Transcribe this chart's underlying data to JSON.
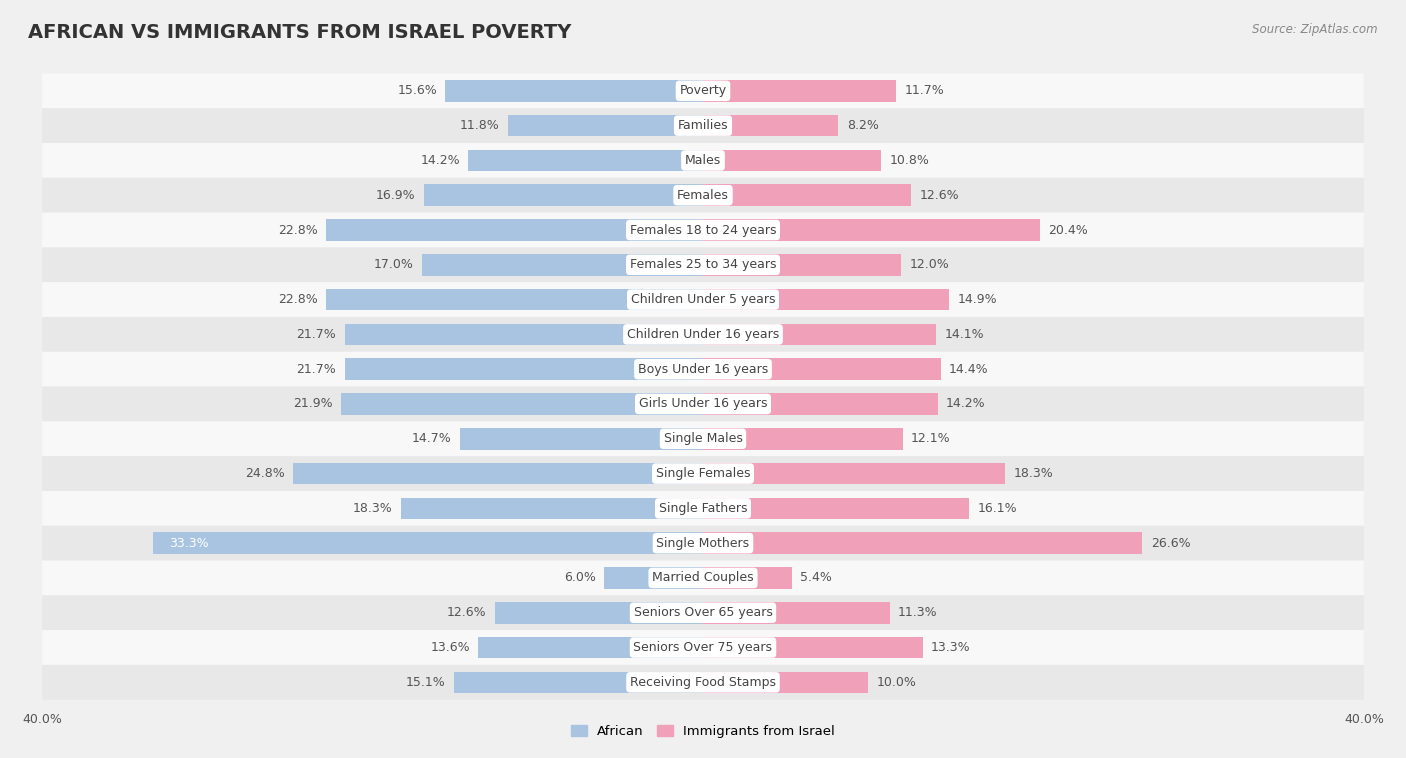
{
  "title": "AFRICAN VS IMMIGRANTS FROM ISRAEL POVERTY",
  "source": "Source: ZipAtlas.com",
  "categories": [
    "Poverty",
    "Families",
    "Males",
    "Females",
    "Females 18 to 24 years",
    "Females 25 to 34 years",
    "Children Under 5 years",
    "Children Under 16 years",
    "Boys Under 16 years",
    "Girls Under 16 years",
    "Single Males",
    "Single Females",
    "Single Fathers",
    "Single Mothers",
    "Married Couples",
    "Seniors Over 65 years",
    "Seniors Over 75 years",
    "Receiving Food Stamps"
  ],
  "african_values": [
    15.6,
    11.8,
    14.2,
    16.9,
    22.8,
    17.0,
    22.8,
    21.7,
    21.7,
    21.9,
    14.7,
    24.8,
    18.3,
    33.3,
    6.0,
    12.6,
    13.6,
    15.1
  ],
  "israel_values": [
    11.7,
    8.2,
    10.8,
    12.6,
    20.4,
    12.0,
    14.9,
    14.1,
    14.4,
    14.2,
    12.1,
    18.3,
    16.1,
    26.6,
    5.4,
    11.3,
    13.3,
    10.0
  ],
  "african_color": "#a8c4e0",
  "israel_color": "#f0a0b8",
  "axis_max": 40.0,
  "background_color": "#f0f0f0",
  "row_color_even": "#f8f8f8",
  "row_color_odd": "#e8e8e8",
  "title_fontsize": 14,
  "label_fontsize": 9,
  "value_fontsize": 9
}
